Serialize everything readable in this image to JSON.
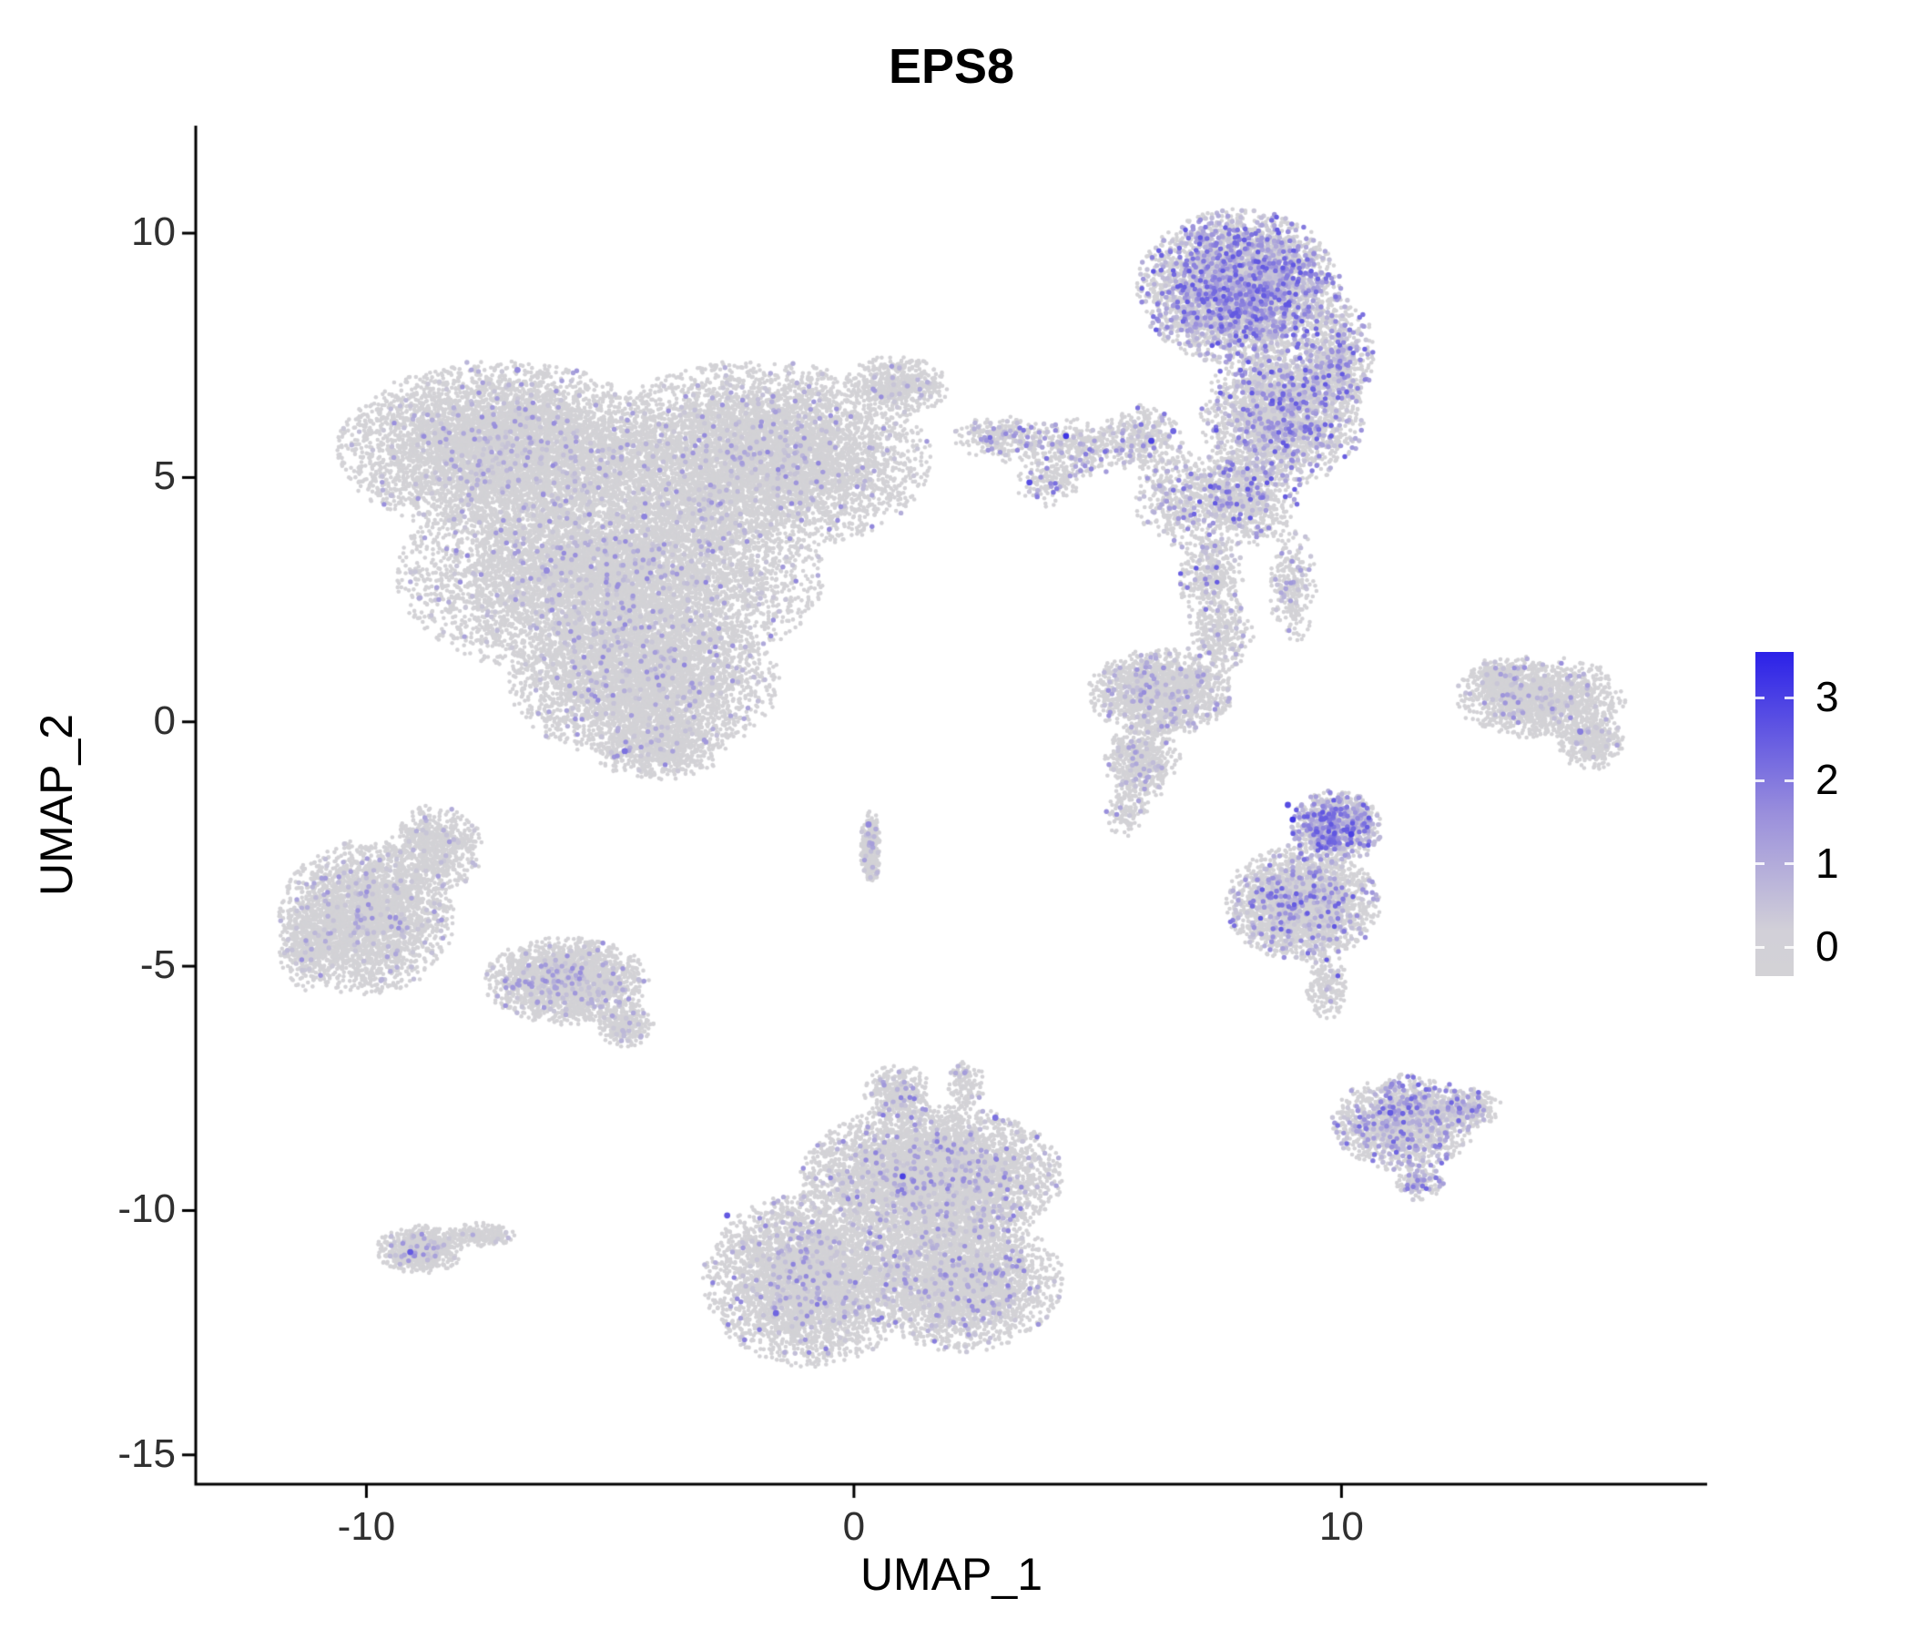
{
  "chart_data": {
    "type": "scatter",
    "title": "EPS8",
    "xlabel": "UMAP_1",
    "ylabel": "UMAP_2",
    "xlim": [
      -13.5,
      17.5
    ],
    "ylim": [
      -15.6,
      12.2
    ],
    "x_ticks": [
      -10,
      0,
      10
    ],
    "y_ticks": [
      -15,
      -10,
      -5,
      0,
      5,
      10
    ],
    "grid": false,
    "value_max": 3.5,
    "colors": {
      "background": "#ffffff",
      "axis": "#000000",
      "point_zero": "#d3d2d6",
      "point_mid": "#968cdc",
      "point_high": "#2d23e6"
    },
    "legend": {
      "position": "right",
      "values": [
        3,
        2,
        1,
        0
      ],
      "bar_min": -0.35,
      "bar_max": 3.55,
      "gradient_stops": [
        {
          "pos": 0,
          "color": "#d3d2d6"
        },
        {
          "pos": 0.14,
          "color": "#d2d0d8"
        },
        {
          "pos": 0.5,
          "color": "#9a8fdc"
        },
        {
          "pos": 1,
          "color": "#2b21e8"
        }
      ]
    },
    "clusters": [
      {
        "name": "main-left",
        "expr_frac": 0.045,
        "expr_max": 1.6,
        "blobs": [
          {
            "cx": -7.2,
            "cy": 5.6,
            "rx": 3.4,
            "ry": 1.8,
            "n": 6000
          },
          {
            "cx": -2.0,
            "cy": 5.4,
            "rx": 3.6,
            "ry": 2.0,
            "n": 6500
          },
          {
            "cx": -5.0,
            "cy": 3.0,
            "rx": 4.4,
            "ry": 2.2,
            "n": 8000
          },
          {
            "cx": -4.3,
            "cy": 0.8,
            "rx": 2.8,
            "ry": 1.6,
            "n": 3800
          },
          {
            "cx": -4.0,
            "cy": -0.5,
            "rx": 1.4,
            "ry": 0.7,
            "n": 700
          },
          {
            "cx": 0.9,
            "cy": 6.9,
            "rx": 1.1,
            "ry": 0.6,
            "n": 500
          }
        ]
      },
      {
        "name": "top-right",
        "expr_frac": 0.3,
        "expr_max": 2.4,
        "blobs": [
          {
            "cx": 7.9,
            "cy": 8.9,
            "rx": 2.1,
            "ry": 1.6,
            "n": 4200,
            "expr_frac": 0.35
          },
          {
            "cx": 8.8,
            "cy": 6.3,
            "rx": 1.7,
            "ry": 1.5,
            "n": 2400,
            "expr_frac": 0.22
          },
          {
            "cx": 7.9,
            "cy": 4.6,
            "rx": 1.2,
            "ry": 1.1,
            "n": 900,
            "expr_frac": 0.15
          },
          {
            "cx": 9.9,
            "cy": 7.5,
            "rx": 0.8,
            "ry": 1.2,
            "n": 600,
            "expr_frac": 0.25
          },
          {
            "cx": 7.3,
            "cy": 3.0,
            "rx": 0.7,
            "ry": 0.9,
            "n": 350,
            "expr_frac": 0.1
          }
        ]
      },
      {
        "name": "bridge",
        "expr_frac": 0.15,
        "expr_max": 2.0,
        "blobs": [
          {
            "cx": 3.1,
            "cy": 5.8,
            "rx": 1.1,
            "ry": 0.5,
            "n": 280
          },
          {
            "cx": 4.6,
            "cy": 5.6,
            "rx": 1.1,
            "ry": 0.6,
            "n": 300
          },
          {
            "cx": 5.9,
            "cy": 5.8,
            "rx": 0.9,
            "ry": 0.7,
            "n": 320
          },
          {
            "cx": 4.0,
            "cy": 4.9,
            "rx": 0.7,
            "ry": 0.5,
            "n": 140
          },
          {
            "cx": 6.6,
            "cy": 4.6,
            "rx": 0.9,
            "ry": 1.1,
            "n": 350
          }
        ]
      },
      {
        "name": "mid-right",
        "expr_frac": 0.07,
        "expr_max": 1.5,
        "blobs": [
          {
            "cx": 6.3,
            "cy": 0.6,
            "rx": 1.5,
            "ry": 0.9,
            "n": 1700
          },
          {
            "cx": 5.9,
            "cy": -0.8,
            "rx": 0.8,
            "ry": 0.8,
            "n": 500
          },
          {
            "cx": 7.5,
            "cy": 1.8,
            "rx": 0.7,
            "ry": 0.9,
            "n": 300
          },
          {
            "cx": 5.6,
            "cy": -1.8,
            "rx": 0.5,
            "ry": 0.6,
            "n": 120
          }
        ]
      },
      {
        "name": "trail-to-right",
        "expr_frac": 0.12,
        "expr_max": 1.8,
        "blobs": [
          {
            "cx": 9.0,
            "cy": 2.8,
            "rx": 0.5,
            "ry": 1.2,
            "n": 250
          }
        ]
      },
      {
        "name": "right-mid",
        "expr_frac": 0.28,
        "expr_max": 2.4,
        "blobs": [
          {
            "cx": 9.2,
            "cy": -3.7,
            "rx": 1.6,
            "ry": 1.2,
            "n": 2400,
            "expr_frac": 0.12
          },
          {
            "cx": 9.9,
            "cy": -2.15,
            "rx": 0.95,
            "ry": 0.75,
            "n": 1000,
            "expr_frac": 0.45
          },
          {
            "cx": 9.7,
            "cy": -5.4,
            "rx": 0.45,
            "ry": 0.7,
            "n": 200,
            "expr_frac": 0.08
          }
        ]
      },
      {
        "name": "far-right",
        "expr_frac": 0.05,
        "expr_max": 1.5,
        "blobs": [
          {
            "cx": 14.1,
            "cy": 0.5,
            "rx": 1.8,
            "ry": 0.85,
            "n": 1500
          },
          {
            "cx": 15.1,
            "cy": -0.4,
            "rx": 0.7,
            "ry": 0.6,
            "n": 400
          },
          {
            "cx": 13.2,
            "cy": 0.9,
            "rx": 0.6,
            "ry": 0.4,
            "n": 250
          }
        ]
      },
      {
        "name": "bottom-center",
        "expr_frac": 0.06,
        "expr_max": 1.8,
        "blobs": [
          {
            "cx": 1.6,
            "cy": -9.3,
            "rx": 2.7,
            "ry": 1.5,
            "n": 5200
          },
          {
            "cx": -0.9,
            "cy": -11.4,
            "rx": 2.2,
            "ry": 1.8,
            "n": 4200
          },
          {
            "cx": 2.2,
            "cy": -11.4,
            "rx": 2.1,
            "ry": 1.5,
            "n": 3200
          },
          {
            "cx": 0.9,
            "cy": -7.6,
            "rx": 0.7,
            "ry": 0.6,
            "n": 350
          },
          {
            "cx": 2.3,
            "cy": -7.4,
            "rx": 0.4,
            "ry": 0.5,
            "n": 120
          }
        ]
      },
      {
        "name": "left-mid",
        "expr_frac": 0.05,
        "expr_max": 1.5,
        "blobs": [
          {
            "cx": -10.0,
            "cy": -4.0,
            "rx": 1.8,
            "ry": 1.6,
            "n": 3000
          },
          {
            "cx": -8.6,
            "cy": -2.6,
            "rx": 1.0,
            "ry": 0.9,
            "n": 700
          },
          {
            "cx": -11.2,
            "cy": -4.6,
            "rx": 0.6,
            "ry": 0.9,
            "n": 350
          }
        ]
      },
      {
        "name": "small-mid-left",
        "expr_frac": 0.07,
        "expr_max": 1.5,
        "blobs": [
          {
            "cx": -5.9,
            "cy": -5.3,
            "rx": 1.7,
            "ry": 0.9,
            "n": 2200
          },
          {
            "cx": -4.7,
            "cy": -6.2,
            "rx": 0.6,
            "ry": 0.5,
            "n": 300
          }
        ]
      },
      {
        "name": "bottom-left",
        "expr_frac": 0.05,
        "expr_max": 1.5,
        "blobs": [
          {
            "cx": -8.9,
            "cy": -10.8,
            "rx": 0.9,
            "ry": 0.5,
            "n": 700
          },
          {
            "cx": -7.7,
            "cy": -10.5,
            "rx": 0.8,
            "ry": 0.25,
            "n": 200
          }
        ]
      },
      {
        "name": "bottom-right",
        "expr_frac": 0.22,
        "expr_max": 2.2,
        "blobs": [
          {
            "cx": 11.3,
            "cy": -8.2,
            "rx": 1.5,
            "ry": 1.0,
            "n": 1600
          },
          {
            "cx": 12.6,
            "cy": -7.9,
            "rx": 0.7,
            "ry": 0.4,
            "n": 250
          },
          {
            "cx": 11.6,
            "cy": -9.4,
            "rx": 0.5,
            "ry": 0.4,
            "n": 150
          }
        ]
      },
      {
        "name": "tiny-sliver",
        "expr_frac": 0.06,
        "expr_max": 1.2,
        "blobs": [
          {
            "cx": 0.35,
            "cy": -2.6,
            "rx": 0.22,
            "ry": 0.8,
            "n": 350
          }
        ]
      }
    ],
    "highlight_points": [
      [
        4.35,
        5.85,
        3.2
      ],
      [
        3.6,
        4.9,
        2.8
      ],
      [
        6.1,
        5.75,
        3.0
      ],
      [
        6.55,
        5.95,
        2.4
      ],
      [
        -6.9,
        7.2,
        1.8
      ],
      [
        -4.7,
        -0.6,
        2.2
      ],
      [
        -9.1,
        -10.85,
        2.6
      ],
      [
        1.0,
        -9.3,
        3.0
      ],
      [
        -1.6,
        -12.1,
        2.4
      ],
      [
        -2.6,
        -10.1,
        2.6
      ],
      [
        9.0,
        -2.0,
        3.2
      ],
      [
        8.9,
        -1.7,
        2.8
      ],
      [
        7.9,
        9.6,
        2.4
      ],
      [
        10.2,
        -2.3,
        3.0
      ],
      [
        14.9,
        -0.2,
        2.0
      ],
      [
        11.0,
        -8.0,
        2.6
      ],
      [
        0.3,
        -2.1,
        1.8
      ],
      [
        2.9,
        -8.1,
        2.2
      ],
      [
        -4.3,
        4.2,
        1.9
      ],
      [
        -6.3,
        3.1,
        1.8
      ]
    ]
  }
}
